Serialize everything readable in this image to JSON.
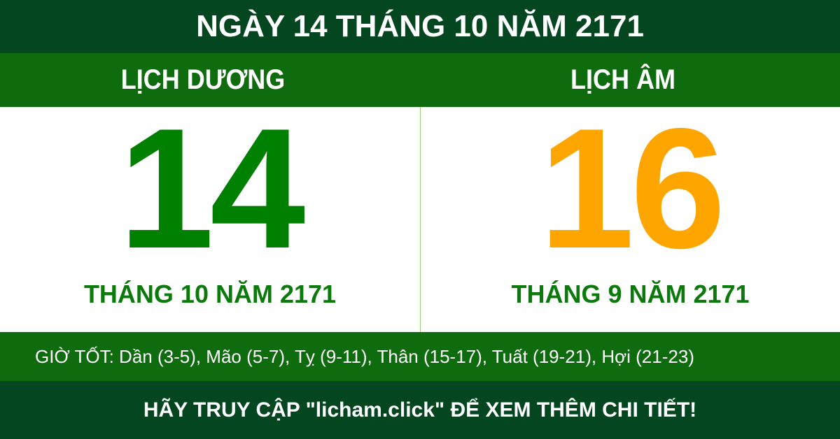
{
  "title": "NGÀY 14 THÁNG 10 NĂM 2171",
  "solar": {
    "label": "LỊCH DƯƠNG",
    "day": "14",
    "month_year": "THÁNG 10 NĂM 2171"
  },
  "lunar": {
    "label": "LỊCH ÂM",
    "day": "16",
    "month_year": "THÁNG 9 NĂM 2171"
  },
  "good_hours": "GIỜ TỐT: Dần (3-5), Mão (5-7), Tỵ (9-11), Thân (15-17), Tuất (19-21), Hợi (21-23)",
  "footer": "HÃY TRUY CẬP \"licham.click\" ĐỂ XEM THÊM CHI TIẾT!",
  "colors": {
    "dark_green": "#03461f",
    "green": "#0e6b0e",
    "solar_day": "#008000",
    "lunar_day": "#ffa500"
  }
}
